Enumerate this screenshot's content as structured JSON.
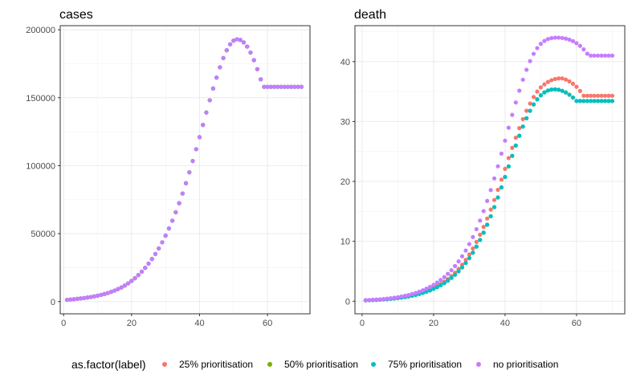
{
  "legend": {
    "title": "as.factor(label)",
    "entries": [
      {
        "label": "25% prioritisation",
        "color": "#F8766D"
      },
      {
        "label": "50% prioritisation",
        "color": "#7CAE00"
      },
      {
        "label": "75% prioritisation",
        "color": "#00BFC4"
      },
      {
        "label": "no prioritisation",
        "color": "#C77CFF"
      }
    ]
  },
  "chart_data": [
    {
      "type": "scatter",
      "title": "cases",
      "xlim": [
        -1,
        72.5
      ],
      "ylim": [
        -9000,
        203000
      ],
      "x_ticks": [
        0,
        20,
        40,
        60
      ],
      "y_ticks": [
        0,
        50000,
        100000,
        150000,
        200000
      ],
      "x_tick_labels": [
        "0",
        "20",
        "40",
        "60"
      ],
      "y_tick_labels": [
        "0",
        "50000",
        "100000",
        "150000",
        "200000"
      ],
      "grid": true,
      "x": [
        1,
        2,
        3,
        4,
        5,
        6,
        7,
        8,
        9,
        10,
        11,
        12,
        13,
        14,
        15,
        16,
        17,
        18,
        19,
        20,
        21,
        22,
        23,
        24,
        25,
        26,
        27,
        28,
        29,
        30,
        31,
        32,
        33,
        34,
        35,
        36,
        37,
        38,
        39,
        40,
        41,
        42,
        43,
        44,
        45,
        46,
        47,
        48,
        49,
        50,
        51,
        52,
        53,
        54,
        55,
        56,
        57,
        58,
        59,
        60,
        61,
        62,
        63,
        64,
        65,
        66,
        67,
        68,
        69,
        70
      ],
      "series": [
        {
          "name": "25% prioritisation",
          "values": [
            1300,
            1500,
            1750,
            2000,
            2300,
            2600,
            2950,
            3350,
            3800,
            4300,
            4900,
            5550,
            6300,
            7150,
            8100,
            9200,
            10400,
            11800,
            13400,
            15200,
            17200,
            19500,
            22000,
            24800,
            27900,
            31300,
            35000,
            39100,
            43600,
            48500,
            53800,
            59500,
            65700,
            72400,
            79500,
            87100,
            95100,
            103400,
            112100,
            121000,
            130000,
            139100,
            148100,
            156800,
            164800,
            172400,
            179200,
            184900,
            189300,
            192000,
            193000,
            192500,
            190700,
            187600,
            183200,
            177600,
            171000,
            163500,
            158000,
            158000,
            158000,
            158000,
            158000,
            158000,
            158000,
            158000,
            158000,
            158000,
            158000,
            158000
          ]
        },
        {
          "name": "50% prioritisation",
          "values": [
            1300,
            1500,
            1750,
            2000,
            2300,
            2600,
            2950,
            3350,
            3800,
            4300,
            4900,
            5550,
            6300,
            7150,
            8100,
            9200,
            10400,
            11800,
            13400,
            15200,
            17200,
            19500,
            22000,
            24800,
            27900,
            31300,
            35000,
            39100,
            43600,
            48500,
            53800,
            59500,
            65700,
            72400,
            79500,
            87100,
            95100,
            103400,
            112100,
            121000,
            130000,
            139100,
            148100,
            156800,
            164800,
            172400,
            179200,
            184900,
            189300,
            192000,
            193000,
            192500,
            190700,
            187600,
            183200,
            177600,
            171000,
            163500,
            158000,
            158000,
            158000,
            158000,
            158000,
            158000,
            158000,
            158000,
            158000,
            158000,
            158000,
            158000
          ]
        },
        {
          "name": "75% prioritisation",
          "values": [
            1300,
            1500,
            1750,
            2000,
            2300,
            2600,
            2950,
            3350,
            3800,
            4300,
            4900,
            5550,
            6300,
            7150,
            8100,
            9200,
            10400,
            11800,
            13400,
            15200,
            17200,
            19500,
            22000,
            24800,
            27900,
            31300,
            35000,
            39100,
            43600,
            48500,
            53800,
            59500,
            65700,
            72400,
            79500,
            87100,
            95100,
            103400,
            112100,
            121000,
            130000,
            139100,
            148100,
            156800,
            164800,
            172400,
            179200,
            184900,
            189300,
            192000,
            193000,
            192500,
            190700,
            187600,
            183200,
            177600,
            171000,
            163500,
            158000,
            158000,
            158000,
            158000,
            158000,
            158000,
            158000,
            158000,
            158000,
            158000,
            158000,
            158000
          ]
        },
        {
          "name": "no prioritisation",
          "values": [
            1300,
            1500,
            1750,
            2000,
            2300,
            2600,
            2950,
            3350,
            3800,
            4300,
            4900,
            5550,
            6300,
            7150,
            8100,
            9200,
            10400,
            11800,
            13400,
            15200,
            17200,
            19500,
            22000,
            24800,
            27900,
            31300,
            35000,
            39100,
            43600,
            48500,
            53800,
            59500,
            65700,
            72400,
            79500,
            87100,
            95100,
            103400,
            112100,
            121000,
            130000,
            139100,
            148100,
            156800,
            164800,
            172400,
            179200,
            184900,
            189300,
            192000,
            193000,
            192500,
            190700,
            187600,
            183200,
            177600,
            171000,
            163500,
            158000,
            158000,
            158000,
            158000,
            158000,
            158000,
            158000,
            158000,
            158000,
            158000,
            158000,
            158000
          ]
        }
      ]
    },
    {
      "type": "scatter",
      "title": "death",
      "xlim": [
        -2,
        73.5
      ],
      "ylim": [
        -2.1,
        46.0
      ],
      "x_ticks": [
        0,
        20,
        40,
        60
      ],
      "y_ticks": [
        0,
        10,
        20,
        30,
        40
      ],
      "x_tick_labels": [
        "0",
        "20",
        "40",
        "60"
      ],
      "y_tick_labels": [
        "0",
        "10",
        "20",
        "30",
        "40"
      ],
      "grid": true,
      "x": [
        1,
        2,
        3,
        4,
        5,
        6,
        7,
        8,
        9,
        10,
        11,
        12,
        13,
        14,
        15,
        16,
        17,
        18,
        19,
        20,
        21,
        22,
        23,
        24,
        25,
        26,
        27,
        28,
        29,
        30,
        31,
        32,
        33,
        34,
        35,
        36,
        37,
        38,
        39,
        40,
        41,
        42,
        43,
        44,
        45,
        46,
        47,
        48,
        49,
        50,
        51,
        52,
        53,
        54,
        55,
        56,
        57,
        58,
        59,
        60,
        61,
        62,
        63,
        64,
        65,
        66,
        67,
        68,
        69,
        70
      ],
      "series": [
        {
          "name": "25% prioritisation",
          "values": [
            0.15,
            0.17,
            0.2,
            0.23,
            0.27,
            0.31,
            0.36,
            0.42,
            0.48,
            0.56,
            0.65,
            0.75,
            0.86,
            0.99,
            1.13,
            1.3,
            1.49,
            1.7,
            1.94,
            2.21,
            2.52,
            2.87,
            3.26,
            3.7,
            4.2,
            4.76,
            5.39,
            6.1,
            6.9,
            7.8,
            8.8,
            9.9,
            11.1,
            12.4,
            13.8,
            15.3,
            16.9,
            18.6,
            20.3,
            22.1,
            23.9,
            25.6,
            27.3,
            28.9,
            30.4,
            31.8,
            33.0,
            34.1,
            35.0,
            35.7,
            36.2,
            36.6,
            36.9,
            37.1,
            37.2,
            37.2,
            37.0,
            36.7,
            36.3,
            35.8,
            35.1,
            34.3,
            34.3,
            34.3,
            34.3,
            34.3,
            34.3,
            34.3,
            34.3,
            34.3
          ]
        },
        {
          "name": "50% prioritisation",
          "values": [
            0.15,
            0.17,
            0.19,
            0.22,
            0.26,
            0.3,
            0.34,
            0.4,
            0.46,
            0.53,
            0.61,
            0.7,
            0.81,
            0.93,
            1.06,
            1.22,
            1.39,
            1.59,
            1.81,
            2.06,
            2.35,
            2.67,
            3.03,
            3.44,
            3.9,
            4.42,
            5.0,
            5.65,
            6.38,
            7.2,
            8.11,
            9.12,
            10.23,
            11.45,
            12.77,
            14.19,
            15.71,
            17.32,
            19.0,
            20.74,
            22.51,
            24.27,
            25.99,
            27.63,
            29.16,
            30.55,
            31.79,
            32.85,
            33.71,
            34.38,
            34.86,
            35.17,
            35.33,
            35.37,
            35.3,
            35.12,
            34.85,
            34.47,
            34.0,
            33.43,
            33.43,
            33.43,
            33.43,
            33.43,
            33.43,
            33.43,
            33.43,
            33.43,
            33.43,
            33.43
          ]
        },
        {
          "name": "75% prioritisation",
          "values": [
            0.15,
            0.17,
            0.19,
            0.22,
            0.26,
            0.3,
            0.34,
            0.4,
            0.46,
            0.53,
            0.61,
            0.7,
            0.81,
            0.93,
            1.06,
            1.22,
            1.39,
            1.59,
            1.81,
            2.06,
            2.35,
            2.67,
            3.03,
            3.44,
            3.9,
            4.42,
            5.0,
            5.65,
            6.38,
            7.2,
            8.11,
            9.12,
            10.23,
            11.45,
            12.77,
            14.19,
            15.71,
            17.32,
            19.0,
            20.74,
            22.51,
            24.27,
            25.99,
            27.63,
            29.16,
            30.55,
            31.79,
            32.85,
            33.71,
            34.38,
            34.86,
            35.17,
            35.33,
            35.37,
            35.3,
            35.12,
            34.85,
            34.47,
            34.0,
            33.43,
            33.43,
            33.43,
            33.43,
            33.43,
            33.43,
            33.43,
            33.43,
            33.43,
            33.43,
            33.43
          ]
        },
        {
          "name": "no prioritisation",
          "values": [
            0.18,
            0.2,
            0.24,
            0.28,
            0.32,
            0.37,
            0.43,
            0.5,
            0.58,
            0.67,
            0.78,
            0.9,
            1.04,
            1.2,
            1.38,
            1.59,
            1.82,
            2.09,
            2.39,
            2.73,
            3.11,
            3.54,
            4.03,
            4.57,
            5.18,
            5.87,
            6.64,
            7.5,
            8.46,
            9.53,
            10.72,
            12.03,
            13.47,
            15.04,
            16.74,
            18.56,
            20.5,
            22.53,
            24.64,
            26.8,
            28.97,
            31.11,
            33.18,
            35.15,
            36.98,
            38.64,
            40.09,
            41.3,
            42.26,
            42.97,
            43.45,
            43.76,
            43.93,
            44.0,
            44.0,
            43.95,
            43.84,
            43.67,
            43.42,
            43.08,
            42.63,
            42.05,
            41.33,
            41.0,
            41.0,
            41.0,
            41.0,
            41.0,
            41.0,
            41.0
          ]
        }
      ]
    }
  ]
}
